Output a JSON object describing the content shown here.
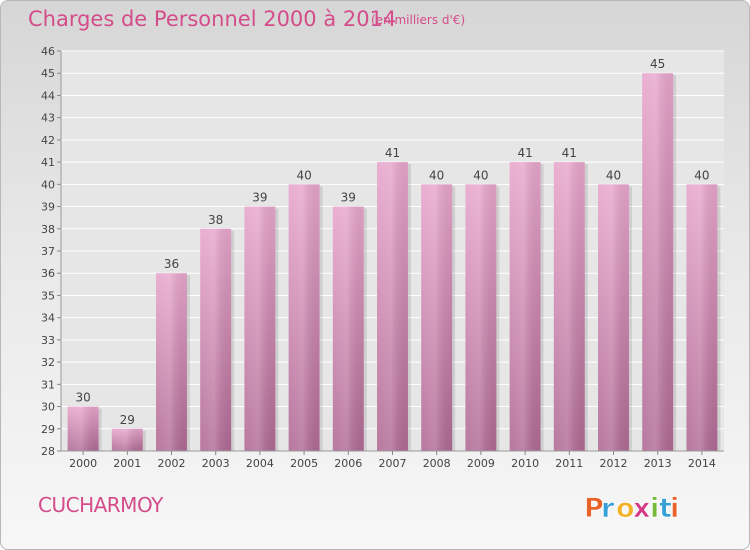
{
  "chart_data": {
    "type": "bar",
    "title": "Charges de Personnel 2000 à 2014",
    "subtitle": "(en milliers d'€)",
    "categories": [
      "2000",
      "2001",
      "2002",
      "2003",
      "2004",
      "2005",
      "2006",
      "2007",
      "2008",
      "2009",
      "2010",
      "2011",
      "2012",
      "2013",
      "2014"
    ],
    "values": [
      30,
      29,
      36,
      38,
      39,
      40,
      39,
      41,
      40,
      40,
      41,
      41,
      40,
      45,
      40
    ],
    "ylim": [
      28,
      46
    ],
    "yticks": [
      28,
      29,
      30,
      31,
      32,
      33,
      34,
      35,
      36,
      37,
      38,
      39,
      40,
      41,
      42,
      43,
      44,
      45,
      46
    ],
    "grid": true,
    "bar_color": "#d987b4"
  },
  "location": "CUCHARMOY",
  "logo": {
    "letters": [
      "P",
      "r",
      "o",
      "x",
      "i",
      "t",
      "i"
    ],
    "colors": [
      "#e8622a",
      "#36a0d8",
      "#f2b12a",
      "#d63a86",
      "#75b83a",
      "#36a0d8",
      "#e8622a"
    ]
  }
}
